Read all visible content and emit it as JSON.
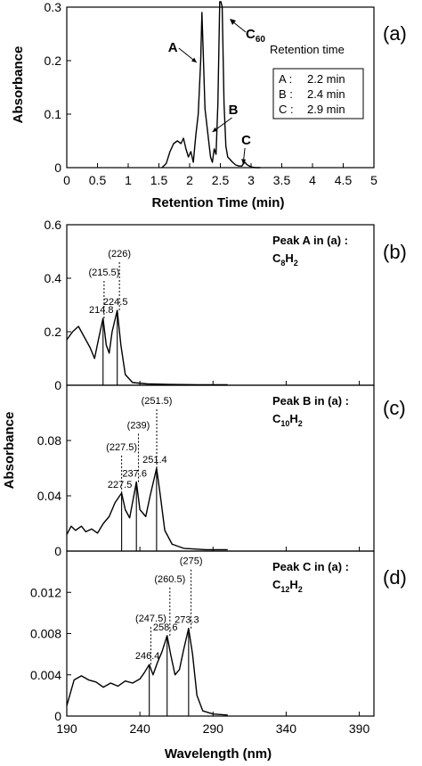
{
  "figure": {
    "panel_labels": [
      "(a)",
      "(b)",
      "(c)",
      "(d)"
    ],
    "shared_ylabel": "Absorbance"
  },
  "chart_data": [
    {
      "id": "a",
      "type": "line",
      "xlabel": "Retention Time (min)",
      "ylabel": "Absorbance",
      "xlim": [
        0,
        5
      ],
      "ylim": [
        0,
        0.3
      ],
      "xticks": [
        "0",
        "0.5",
        "1",
        "1.5",
        "2",
        "2.5",
        "3",
        "3.5",
        "4",
        "4.5",
        "5"
      ],
      "yticks": [
        "0",
        "0.1",
        "0.2",
        "0.3"
      ],
      "series": [
        {
          "x": [
            1.55,
            1.62,
            1.68,
            1.74,
            1.8,
            1.86,
            1.9,
            1.94,
            1.98,
            2.02,
            2.06,
            2.1,
            2.14,
            2.18,
            2.2,
            2.22,
            2.25,
            2.28,
            2.31,
            2.34,
            2.37,
            2.4,
            2.43,
            2.46,
            2.49,
            2.51,
            2.53,
            2.56,
            2.59,
            2.62,
            2.66,
            2.7,
            2.75,
            2.8,
            2.85,
            2.88,
            2.9,
            2.93,
            2.97,
            3.02,
            3.08,
            3.15
          ],
          "y": [
            0,
            0.008,
            0.03,
            0.045,
            0.05,
            0.045,
            0.055,
            0.035,
            0.02,
            0.03,
            0.01,
            0.06,
            0.1,
            0.2,
            0.29,
            0.22,
            0.11,
            0.08,
            0.05,
            0.02,
            0.01,
            0.035,
            0.025,
            0.12,
            0.31,
            0.31,
            0.3,
            0.12,
            0.04,
            0.02,
            0.015,
            0.01,
            0.005,
            0.003,
            0.003,
            0.008,
            0.01,
            0.006,
            0.003,
            0.001,
            0,
            0
          ]
        }
      ],
      "annotations": [
        {
          "label": "A",
          "x": 2.2,
          "y": 0.2
        },
        {
          "label": "B",
          "x": 2.4,
          "y": 0.07
        },
        {
          "label": "C",
          "x": 2.9,
          "y": 0.01
        }
      ],
      "c60_label": {
        "main": "C",
        "sub": "60"
      },
      "retention_title": "Retention time",
      "legend": [
        {
          "key": "A",
          "val": "2.2 min"
        },
        {
          "key": "B",
          "val": "2.4 min"
        },
        {
          "key": "C",
          "val": "2.9 min"
        }
      ]
    },
    {
      "id": "b",
      "type": "line",
      "xlim": [
        190,
        400
      ],
      "ylim": [
        0,
        0.6
      ],
      "yticks": [
        "0",
        "0.2",
        "0.4",
        "0.6"
      ],
      "series": [
        {
          "x": [
            190,
            194,
            198,
            202,
            206,
            209,
            212,
            214.8,
            217,
            219,
            221,
            224.5,
            227,
            230,
            235,
            245,
            260,
            280,
            300
          ],
          "y": [
            0.17,
            0.2,
            0.22,
            0.18,
            0.14,
            0.1,
            0.18,
            0.25,
            0.15,
            0.12,
            0.2,
            0.28,
            0.15,
            0.04,
            0.01,
            0.005,
            0.003,
            0.002,
            0.002
          ]
        }
      ],
      "peaks": [
        {
          "solid_x": 214.8,
          "solid_label": "214.8",
          "dotted_x": 215.5,
          "dotted_label": "(215.5)",
          "y_top": 0.25
        },
        {
          "solid_x": 224.5,
          "solid_label": "224.5",
          "dotted_x": 226,
          "dotted_label": "(226)",
          "y_top": 0.28
        }
      ],
      "title_line1": "Peak A in (a) :",
      "formula": {
        "c": "C",
        "n": "8",
        "h": "H",
        "hn": "2"
      }
    },
    {
      "id": "c",
      "type": "line",
      "xlim": [
        190,
        400
      ],
      "ylim": [
        0,
        0.12
      ],
      "yticks": [
        "0",
        "0.04",
        "0.08"
      ],
      "series": [
        {
          "x": [
            190,
            193,
            196,
            200,
            203,
            207,
            211,
            215,
            219,
            223,
            227.5,
            230,
            233,
            237.6,
            240,
            244,
            247,
            251.4,
            254,
            257,
            262,
            270,
            285,
            300
          ],
          "y": [
            0.012,
            0.018,
            0.015,
            0.018,
            0.014,
            0.016,
            0.013,
            0.02,
            0.025,
            0.035,
            0.042,
            0.03,
            0.024,
            0.05,
            0.03,
            0.025,
            0.04,
            0.06,
            0.04,
            0.015,
            0.005,
            0.002,
            0.001,
            0.001
          ]
        }
      ],
      "peaks": [
        {
          "solid_x": 227.5,
          "solid_label": "227.5",
          "dotted_x": 227.5,
          "dotted_label": "(227.5)",
          "y_top": 0.042
        },
        {
          "solid_x": 237.6,
          "solid_label": "237.6",
          "dotted_x": 239,
          "dotted_label": "(239)",
          "y_top": 0.05
        },
        {
          "solid_x": 251.4,
          "solid_label": "251.4",
          "dotted_x": 251.5,
          "dotted_label": "(251.5)",
          "y_top": 0.06
        }
      ],
      "title_line1": "Peak B in (a) :",
      "formula": {
        "c": "C",
        "n": "10",
        "h": "H",
        "hn": "2"
      }
    },
    {
      "id": "d",
      "type": "line",
      "xlabel": "Wavelength (nm)",
      "xlim": [
        190,
        400
      ],
      "ylim": [
        0,
        0.016
      ],
      "xticks": [
        "190",
        "240",
        "290",
        "340",
        "390"
      ],
      "yticks": [
        "0",
        "0.004",
        "0.008",
        "0.012"
      ],
      "series": [
        {
          "x": [
            190,
            195,
            200,
            205,
            210,
            215,
            220,
            225,
            230,
            235,
            240,
            243,
            246.4,
            249,
            252,
            255,
            258.6,
            261,
            264,
            267,
            270,
            273.3,
            276,
            279,
            283,
            290,
            300
          ],
          "y": [
            0.001,
            0.0035,
            0.0039,
            0.0035,
            0.0033,
            0.0028,
            0.0032,
            0.0029,
            0.0034,
            0.0032,
            0.0036,
            0.0042,
            0.005,
            0.004,
            0.0052,
            0.0062,
            0.0078,
            0.006,
            0.004,
            0.0045,
            0.0065,
            0.0085,
            0.006,
            0.002,
            0.0005,
            0.0002,
            0.0001
          ]
        }
      ],
      "peaks": [
        {
          "solid_x": 246.4,
          "solid_label": "246.4",
          "dotted_x": 247.5,
          "dotted_label": "(247.5)",
          "y_top": 0.005
        },
        {
          "solid_x": 258.6,
          "solid_label": "258.6",
          "dotted_x": 260.5,
          "dotted_label": "(260.5)",
          "y_top": 0.0078
        },
        {
          "solid_x": 273.3,
          "solid_label": "273.3",
          "dotted_x": 275,
          "dotted_label": "(275)",
          "y_top": 0.0085
        }
      ],
      "title_line1": "Peak C in (a) :",
      "formula": {
        "c": "C",
        "n": "12",
        "h": "H",
        "hn": "2"
      }
    }
  ]
}
